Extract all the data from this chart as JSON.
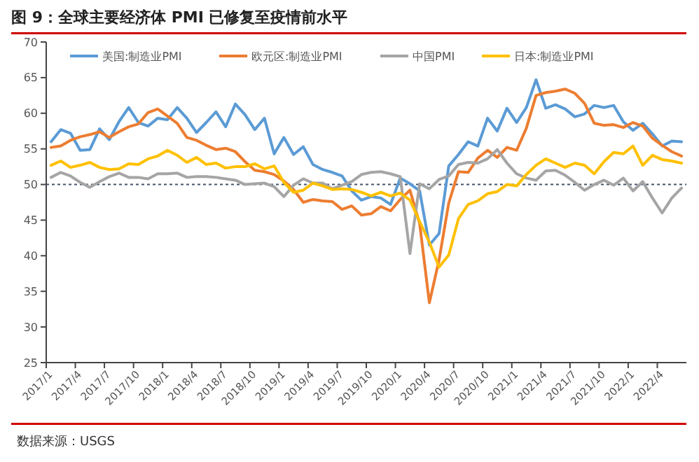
{
  "chart_data": {
    "type": "line",
    "title": "图 9：全球主要经济体 PMI 已修复至疫情前水平",
    "categories": [
      "2017/1",
      null,
      null,
      "2017/4",
      null,
      null,
      "2017/7",
      null,
      null,
      "2017/10",
      null,
      null,
      "2018/1",
      null,
      null,
      "2018/4",
      null,
      null,
      "2018/7",
      null,
      null,
      "2018/10",
      null,
      null,
      "2019/1",
      null,
      null,
      "2019/4",
      null,
      null,
      "2019/7",
      null,
      null,
      "2019/10",
      null,
      null,
      "2020/1",
      null,
      null,
      "2020/4",
      null,
      null,
      "2020/7",
      null,
      null,
      "2020/10",
      null,
      null,
      "2021/1",
      null,
      null,
      "2021/4",
      null,
      null,
      "2021/7",
      null,
      null,
      "2021/10",
      null,
      null,
      "2022/1",
      null,
      null,
      "2022/4",
      null,
      null
    ],
    "series": [
      {
        "name": "美国:制造业PMI",
        "color": "#5b9bd5",
        "values": [
          56.0,
          57.7,
          57.2,
          54.8,
          54.9,
          57.8,
          56.3,
          58.8,
          60.8,
          58.7,
          58.2,
          59.3,
          59.1,
          60.8,
          59.3,
          57.3,
          58.7,
          60.2,
          58.1,
          61.3,
          59.8,
          57.7,
          59.3,
          54.3,
          56.6,
          54.2,
          55.3,
          52.8,
          52.1,
          51.7,
          51.2,
          49.1,
          47.8,
          48.3,
          48.1,
          47.2,
          50.9,
          50.1,
          49.1,
          41.5,
          43.1,
          52.6,
          54.2,
          56.0,
          55.4,
          59.3,
          57.5,
          60.7,
          58.7,
          60.8,
          64.7,
          60.7,
          61.2,
          60.6,
          59.5,
          59.9,
          61.1,
          60.8,
          61.1,
          58.8,
          57.6,
          58.6,
          57.1,
          55.4,
          56.1,
          56.0
        ]
      },
      {
        "name": "欧元区:制造业PMI",
        "color": "#ed7d31",
        "values": [
          55.2,
          55.4,
          56.2,
          56.7,
          57.0,
          57.4,
          56.6,
          57.4,
          58.1,
          58.5,
          60.1,
          60.6,
          59.6,
          58.6,
          56.6,
          56.2,
          55.5,
          54.9,
          55.1,
          54.6,
          53.2,
          52.0,
          51.8,
          51.4,
          50.5,
          49.3,
          47.5,
          47.9,
          47.7,
          47.6,
          46.5,
          47.0,
          45.7,
          45.9,
          46.9,
          46.3,
          47.9,
          49.2,
          44.5,
          33.4,
          39.4,
          47.4,
          51.8,
          51.7,
          53.7,
          54.8,
          53.8,
          55.2,
          54.8,
          57.9,
          62.5,
          62.9,
          63.1,
          63.4,
          62.8,
          61.4,
          58.6,
          58.3,
          58.4,
          58.0,
          58.7,
          58.2,
          56.5,
          55.5,
          54.6,
          54.0
        ]
      },
      {
        "name": "中国PMI",
        "color": "#a5a5a5",
        "values": [
          51.0,
          51.7,
          51.2,
          50.3,
          49.6,
          50.4,
          51.1,
          51.6,
          51.0,
          51.0,
          50.8,
          51.5,
          51.5,
          51.6,
          51.0,
          51.1,
          51.1,
          51.0,
          50.8,
          50.6,
          50.0,
          50.1,
          50.2,
          49.7,
          48.3,
          49.9,
          50.8,
          50.2,
          50.2,
          49.4,
          49.9,
          50.4,
          51.4,
          51.7,
          51.8,
          51.5,
          51.1,
          40.3,
          50.1,
          49.4,
          50.7,
          51.2,
          52.8,
          53.1,
          53.0,
          53.6,
          54.9,
          53.0,
          51.5,
          50.9,
          50.6,
          51.9,
          52.0,
          51.3,
          50.3,
          49.2,
          50.0,
          50.6,
          49.9,
          50.9,
          49.1,
          50.4,
          48.1,
          46.0,
          48.1,
          49.5
        ]
      },
      {
        "name": "日本:制造业PMI",
        "color": "#ffc000",
        "values": [
          52.7,
          53.3,
          52.4,
          52.7,
          53.1,
          52.4,
          52.1,
          52.2,
          52.9,
          52.8,
          53.6,
          54.0,
          54.8,
          54.1,
          53.1,
          53.8,
          52.8,
          53.0,
          52.3,
          52.5,
          52.5,
          52.9,
          52.2,
          52.6,
          50.3,
          48.9,
          49.2,
          50.2,
          49.8,
          49.3,
          49.4,
          49.3,
          48.9,
          48.4,
          48.9,
          48.4,
          48.8,
          47.8,
          44.8,
          41.9,
          38.4,
          40.1,
          45.2,
          47.2,
          47.7,
          48.7,
          49.0,
          50.0,
          49.8,
          51.4,
          52.7,
          53.6,
          53.0,
          52.4,
          53.0,
          52.7,
          51.5,
          53.2,
          54.5,
          54.3,
          55.4,
          52.7,
          54.1,
          53.5,
          53.3,
          53.0
        ]
      }
    ],
    "ylim": [
      25,
      70
    ],
    "yticks": [
      25,
      30,
      35,
      40,
      45,
      50,
      55,
      60,
      65,
      70
    ],
    "ref_lines": [
      {
        "axis": "y",
        "value": 50,
        "color": "#44546a",
        "line_style": "dotted"
      }
    ],
    "legend": "top",
    "grid": false,
    "annotations": [
      "数据来源：USGS"
    ]
  }
}
